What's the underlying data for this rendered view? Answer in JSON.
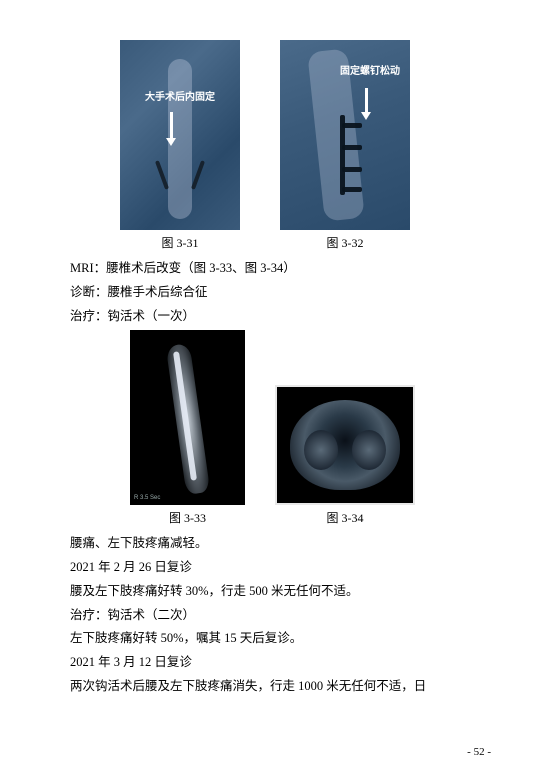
{
  "fig1": {
    "overlay": "大手术后内固定",
    "caption": "图 3-31"
  },
  "fig2": {
    "overlay": "固定螺钉松动",
    "caption": "图 3-32"
  },
  "text1": {
    "l1": "MRI：腰椎术后改变（图 3-33、图 3-34）",
    "l2": "诊断：腰椎手术后综合征",
    "l3": "治疗：钩活术（一次）"
  },
  "fig3": {
    "bl": "R 3.5 Sec",
    "caption": "图 3-33"
  },
  "fig4": {
    "caption": "图 3-34"
  },
  "text2": {
    "l1": "腰痛、左下肢疼痛减轻。",
    "l2": "2021 年 2 月 26 日复诊",
    "l3": "腰及左下肢疼痛好转 30%，行走 500 米无任何不适。",
    "l4": "治疗：钩活术（二次）",
    "l5": "左下肢疼痛好转 50%，嘱其 15 天后复诊。",
    "l6": "2021 年 3 月 12 日复诊",
    "l7": "两次钩活术后腰及左下肢疼痛消失，行走 1000 米无任何不适，日"
  },
  "pagenum": "- 52 -"
}
